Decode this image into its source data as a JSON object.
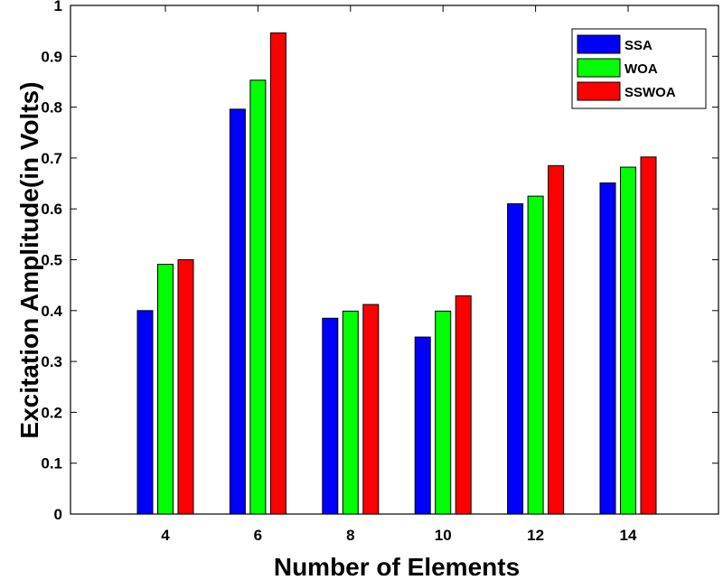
{
  "chart_data": {
    "type": "bar",
    "title": "",
    "xlabel": "Number of Elements",
    "ylabel": "Excitation Amplitude(in Volts)",
    "categories": [
      "4",
      "6",
      "8",
      "10",
      "12",
      "14"
    ],
    "ylim": [
      0,
      1
    ],
    "yticks": [
      "0",
      "0.1",
      "0.2",
      "0.3",
      "0.4",
      "0.5",
      "0.6",
      "0.7",
      "0.8",
      "0.9",
      "1"
    ],
    "grid": false,
    "legend_position": "top-right",
    "series": [
      {
        "name": "SSA",
        "color": "#0000ff",
        "values": [
          0.4,
          0.796,
          0.385,
          0.348,
          0.61,
          0.651
        ]
      },
      {
        "name": "WOA",
        "color": "#00ff00",
        "values": [
          0.491,
          0.853,
          0.399,
          0.399,
          0.625,
          0.682
        ]
      },
      {
        "name": "SSWOA",
        "color": "#ff0000",
        "values": [
          0.5,
          0.946,
          0.412,
          0.429,
          0.685,
          0.702
        ]
      }
    ]
  }
}
